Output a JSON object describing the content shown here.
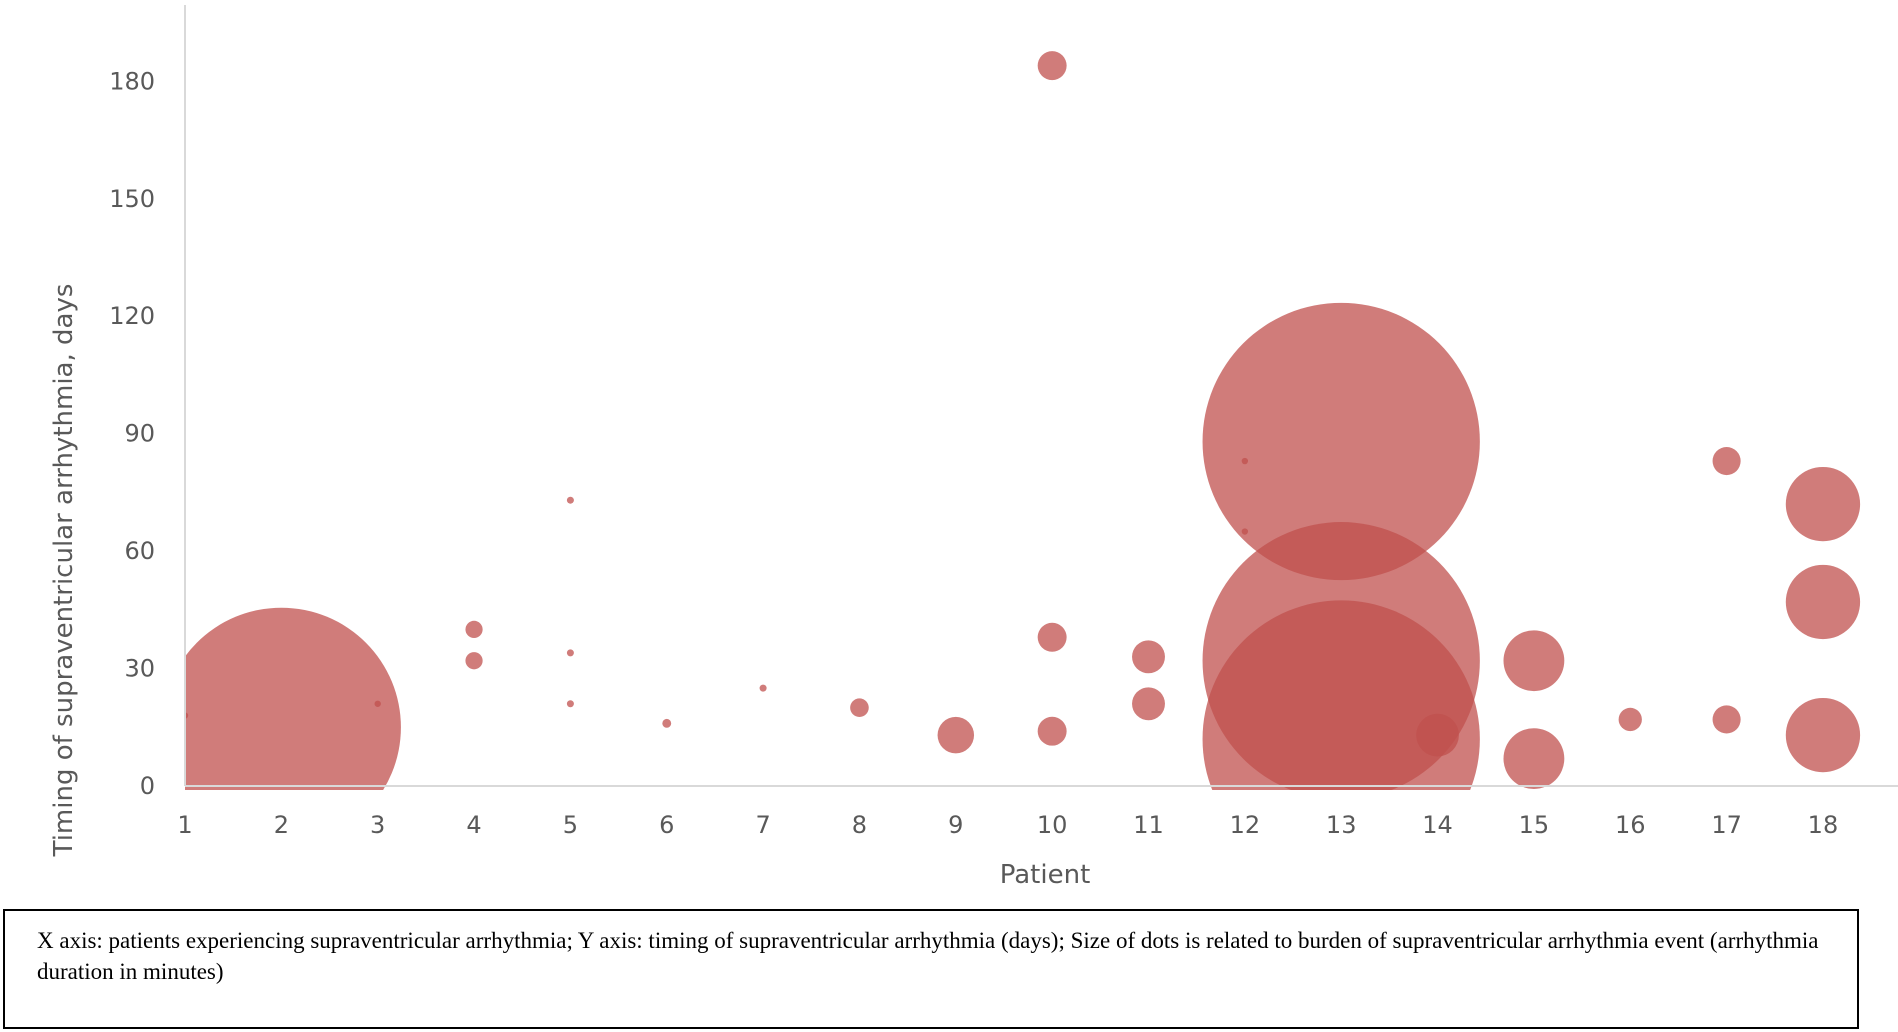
{
  "colors": {
    "bubble": "#c0504d",
    "axis": "#d9d9d9",
    "text": "#595959"
  },
  "caption": "X axis: patients experiencing supraventricular arrhythmia; Y axis: timing of supraventricular arrhythmia (days); Size of dots is related to burden of supraventricular arrhythmia event (arrhythmia duration in minutes)",
  "chart_data": {
    "type": "scatter",
    "subtype": "bubble",
    "title": "",
    "xlabel": "Patient",
    "ylabel": "Timing of supraventricular arrhythmia, days",
    "xlim": [
      1,
      18
    ],
    "ylim": [
      0,
      190
    ],
    "x_ticks": [
      "1",
      "2",
      "3",
      "4",
      "5",
      "6",
      "7",
      "8",
      "9",
      "10",
      "11",
      "12",
      "13",
      "14",
      "15",
      "16",
      "17",
      "18"
    ],
    "y_ticks": [
      "0",
      "30",
      "60",
      "90",
      "120",
      "150",
      "180"
    ],
    "grid": false,
    "legend": "none",
    "series": [
      {
        "points": [
          {
            "x": 1,
            "y": 18,
            "size": 1
          },
          {
            "x": 2,
            "y": 15,
            "size": 5800
          },
          {
            "x": 3,
            "y": 21,
            "size": 1
          },
          {
            "x": 4,
            "y": 40,
            "size": 30
          },
          {
            "x": 4,
            "y": 32,
            "size": 30
          },
          {
            "x": 5,
            "y": 73,
            "size": 5
          },
          {
            "x": 5,
            "y": 34,
            "size": 5
          },
          {
            "x": 5,
            "y": 21,
            "size": 5
          },
          {
            "x": 6,
            "y": 16,
            "size": 8
          },
          {
            "x": 7,
            "y": 25,
            "size": 5
          },
          {
            "x": 8,
            "y": 20,
            "size": 35
          },
          {
            "x": 9,
            "y": 13,
            "size": 135
          },
          {
            "x": 10,
            "y": 184,
            "size": 85
          },
          {
            "x": 10,
            "y": 38,
            "size": 85
          },
          {
            "x": 10,
            "y": 14,
            "size": 85
          },
          {
            "x": 11,
            "y": 33,
            "size": 110
          },
          {
            "x": 11,
            "y": 21,
            "size": 110
          },
          {
            "x": 12,
            "y": 83,
            "size": 1
          },
          {
            "x": 12,
            "y": 65,
            "size": 1
          },
          {
            "x": 13,
            "y": 88,
            "size": 7800
          },
          {
            "x": 13,
            "y": 32,
            "size": 7800
          },
          {
            "x": 13,
            "y": 12,
            "size": 7800
          },
          {
            "x": 14,
            "y": 13,
            "size": 185
          },
          {
            "x": 15,
            "y": 32,
            "size": 375
          },
          {
            "x": 15,
            "y": 7,
            "size": 375
          },
          {
            "x": 16,
            "y": 17,
            "size": 55
          },
          {
            "x": 17,
            "y": 83,
            "size": 80
          },
          {
            "x": 17,
            "y": 17,
            "size": 80
          },
          {
            "x": 18,
            "y": 72,
            "size": 560
          },
          {
            "x": 18,
            "y": 47,
            "size": 560
          },
          {
            "x": 18,
            "y": 13,
            "size": 560
          }
        ]
      }
    ]
  }
}
